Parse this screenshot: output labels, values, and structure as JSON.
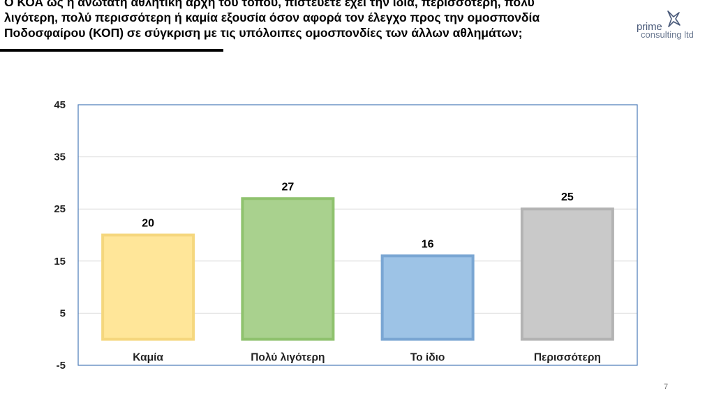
{
  "header": {
    "title_lines": [
      "Ο ΚΟΑ ως η ανώτατη αθλητική αρχή του τόπου, πιστεύετε έχει την ίδια, περισσότερη, πολύ",
      "λιγότερη, πολύ περισσότερη ή καμία εξουσία όσον αφορά τον έλεγχο προς την ομοσπονδία",
      "Ποδοσφαίρου (ΚΟΠ) σε σύγκριση με τις υπόλοιπες ομοσπονδίες των άλλων αθλημάτων;"
    ]
  },
  "logo": {
    "line1": "prime",
    "line2": "consulting ltd"
  },
  "page_number": "7",
  "colors": {
    "plot_border": "#4a7ab8",
    "gridline": "#d9d9d9"
  },
  "chart_data": {
    "type": "bar",
    "categories": [
      "Καμία",
      "Πολύ λιγότερη",
      "Το ίδιο",
      "Περισσότερη"
    ],
    "values": [
      20,
      27,
      16,
      25
    ],
    "data_labels": [
      "20",
      "27",
      "16",
      "25"
    ],
    "bar_colors": [
      {
        "fill": "#ffe699",
        "stroke": "#f5d77e"
      },
      {
        "fill": "#a9d18e",
        "stroke": "#8fc26e"
      },
      {
        "fill": "#9dc3e6",
        "stroke": "#7aa6d3"
      },
      {
        "fill": "#c9c9c9",
        "stroke": "#b3b3b3"
      }
    ],
    "ylim": [
      -5,
      45
    ],
    "yticks": [
      45,
      35,
      25,
      15,
      5,
      -5
    ],
    "ytick_labels": [
      "45",
      "35",
      "25",
      "15",
      "5",
      "-5"
    ],
    "baseline": 0,
    "grid": true,
    "legend": "none",
    "title": "",
    "xlabel": "",
    "ylabel": ""
  }
}
